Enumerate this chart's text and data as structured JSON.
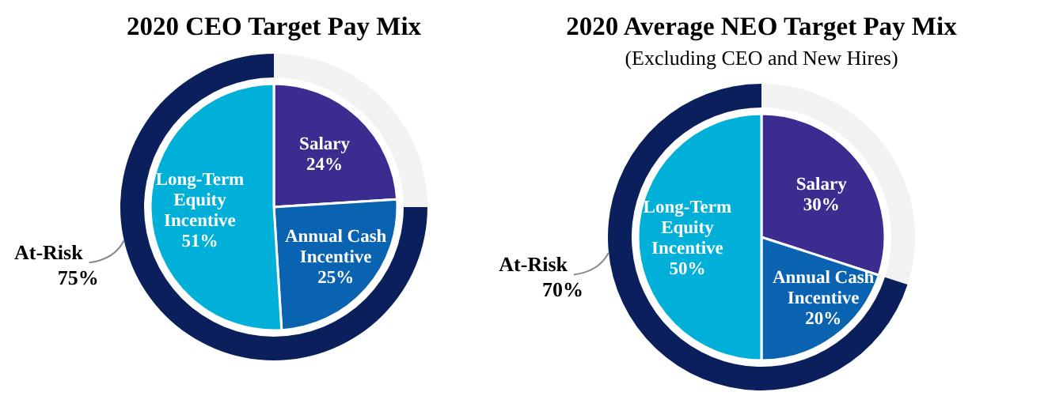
{
  "chart_data": [
    {
      "type": "pie",
      "title": "2020 CEO Target Pay Mix",
      "categories": [
        "Salary",
        "Annual Cash Incentive",
        "Long-Term Equity Incentive"
      ],
      "values": [
        24,
        25,
        51
      ],
      "value_labels": [
        "24%",
        "25%",
        "51%"
      ],
      "colors": [
        "#3a2d8f",
        "#0a63b0",
        "#00b0d8"
      ]
    },
    {
      "type": "donut",
      "categories": [
        "At-Risk",
        null
      ],
      "values": [
        75,
        25
      ],
      "value_labels": [
        "75%",
        null
      ],
      "colors": [
        "#0a1f5c",
        "#f2f2f2"
      ]
    },
    {
      "type": "pie",
      "title": "2020 Average NEO Target Pay Mix",
      "subtitle": "(Excluding CEO and New Hires)",
      "categories": [
        "Salary",
        "Annual Cash Incentive",
        "Long-Term Equity Incentive"
      ],
      "values": [
        30,
        20,
        50
      ],
      "value_labels": [
        "30%",
        "20%",
        "50%"
      ],
      "colors": [
        "#3a2d8f",
        "#0a63b0",
        "#00b0d8"
      ]
    },
    {
      "type": "donut",
      "categories": [
        "At-Risk",
        null
      ],
      "values": [
        70,
        30
      ],
      "value_labels": [
        "70%",
        null
      ],
      "colors": [
        "#0a1f5c",
        "#f2f2f2"
      ]
    }
  ]
}
